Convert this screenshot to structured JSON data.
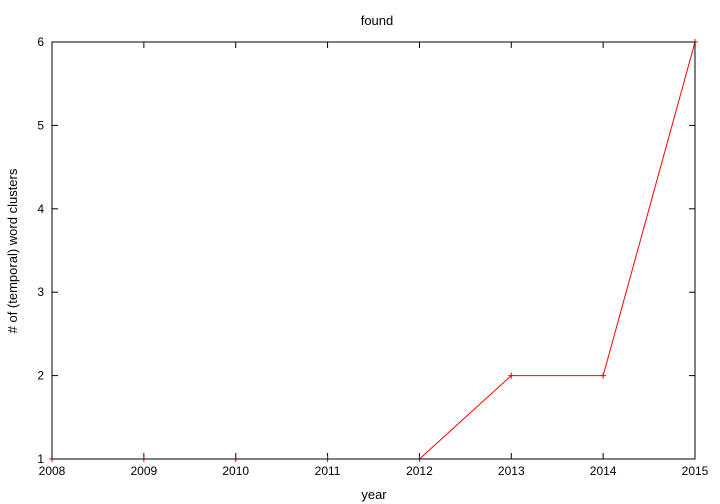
{
  "chart_data": {
    "type": "line",
    "title": "found",
    "xlabel": "year",
    "ylabel": "# of (temporal) word clusters",
    "x": [
      2008,
      2009,
      2010,
      2011,
      2012,
      2013,
      2014,
      2015
    ],
    "series": [
      {
        "values": [
          1,
          1,
          1,
          1,
          1,
          2,
          2,
          6
        ],
        "color": "#ff0000"
      }
    ],
    "xlim": [
      2008,
      2015
    ],
    "ylim": [
      1,
      6
    ],
    "xticks": [
      2008,
      2009,
      2010,
      2011,
      2012,
      2013,
      2014,
      2015
    ],
    "yticks": [
      1,
      2,
      3,
      4,
      5,
      6
    ],
    "grid": false,
    "legend": "none"
  }
}
